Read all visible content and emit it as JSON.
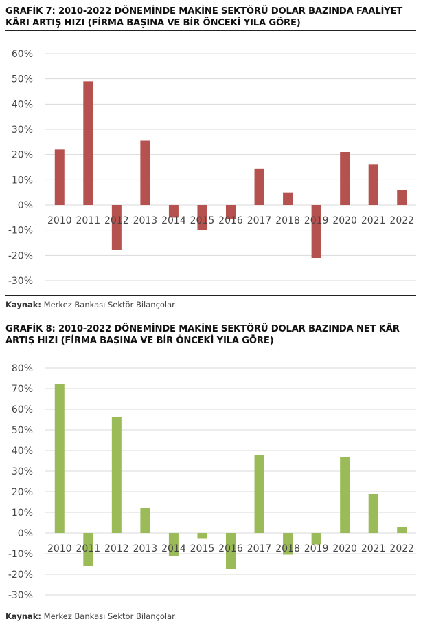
{
  "chart_data": [
    {
      "type": "bar",
      "title": "GRAFİK 7: 2010-2022 DÖNEMİNDE MAKİNE SEKTÖRÜ DOLAR BAZINDA FAALİYET KÂRI ARTIŞ HIZI (FİRMA BAŞINA VE BİR ÖNCEKİ YILA GÖRE)",
      "categories": [
        "2010",
        "2011",
        "2012",
        "2013",
        "2014",
        "2015",
        "2016",
        "2017",
        "2018",
        "2019",
        "2020",
        "2021",
        "2022"
      ],
      "values": [
        22,
        49,
        -18,
        25.5,
        -5,
        -10,
        -5.5,
        14.5,
        5,
        -21,
        21,
        16,
        6
      ],
      "ylim": [
        -30,
        60
      ],
      "yticks": [
        60,
        50,
        40,
        30,
        20,
        10,
        0,
        -10,
        -20,
        -30
      ],
      "ytick_labels": [
        "60%",
        "50%",
        "40%",
        "30%",
        "20%",
        "10%",
        "0%",
        "-10%",
        "-20%",
        "-30%"
      ],
      "color": "#b5524f",
      "source_label": "Kaynak:",
      "source_text": " Merkez Bankası Sektör Bilançoları"
    },
    {
      "type": "bar",
      "title": "GRAFİK 8: 2010-2022 DÖNEMİNDE MAKİNE SEKTÖRÜ DOLAR BAZINDA NET KÂR ARTIŞ HIZI (FİRMA BAŞINA VE BİR ÖNCEKİ YILA GÖRE)",
      "categories": [
        "2010",
        "2011",
        "2012",
        "2013",
        "2014",
        "2015",
        "2016",
        "2017",
        "2018",
        "2019",
        "2020",
        "2021",
        "2022"
      ],
      "values": [
        72,
        -16,
        56,
        12,
        -11,
        -2.5,
        -17.5,
        38,
        -10.5,
        -5.5,
        37,
        19,
        3
      ],
      "ylim": [
        -30,
        80
      ],
      "yticks": [
        80,
        70,
        60,
        50,
        40,
        30,
        20,
        10,
        0,
        -10,
        -20,
        -30
      ],
      "ytick_labels": [
        "80%",
        "70%",
        "60%",
        "50%",
        "40%",
        "30%",
        "20%",
        "10%",
        "0%",
        "-10%",
        "-20%",
        "-30%"
      ],
      "color": "#9bbb59",
      "source_label": "Kaynak:",
      "source_text": " Merkez Bankası Sektör Bilançoları"
    }
  ]
}
